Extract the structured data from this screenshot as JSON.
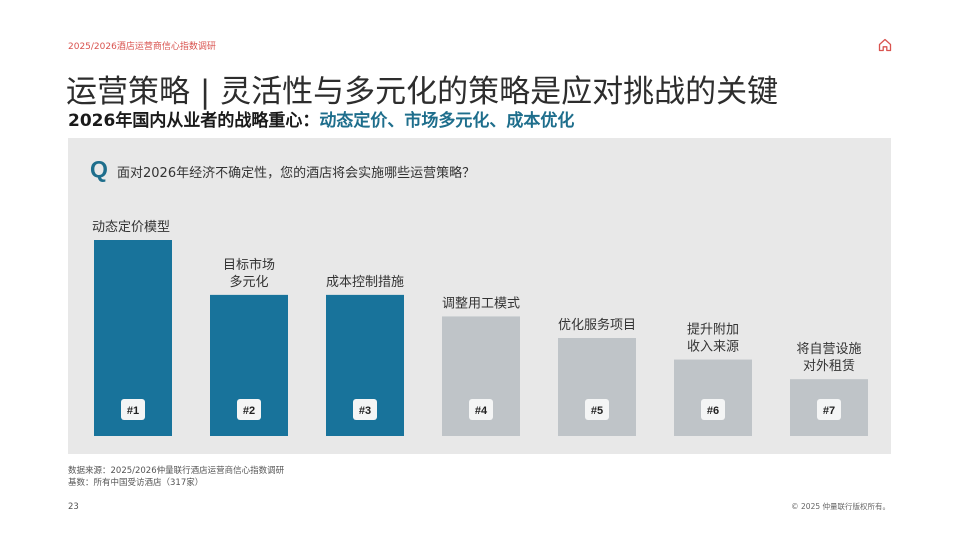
{
  "header": {
    "report_label": "2025/2026酒店运营商信心指数调研",
    "home_icon": "home-icon"
  },
  "title": "运营策略 | 灵活性与多元化的策略是应对挑战的关键",
  "subtitle": {
    "prefix": "2026年国内从业者的战略重心：",
    "highlight": "动态定价、市场多元化、成本优化"
  },
  "question": {
    "mark": "Q",
    "text": "面对2026年经济不确定性，您的酒店将会实施哪些运营策略？"
  },
  "colors": {
    "highlight_bar": "#18739b",
    "other_bar": "#bfc4c8",
    "panel": "#e8e8e8",
    "accent": "#1e6e8c"
  },
  "chart_data": {
    "type": "bar",
    "categories": [
      [
        "动态定价模型"
      ],
      [
        "目标市场",
        "多元化"
      ],
      [
        "成本控制措施"
      ],
      [
        "调整用工模式"
      ],
      [
        "优化服务项目"
      ],
      [
        "提升附加",
        "收入来源"
      ],
      [
        "将自营设施",
        "对外租赁"
      ]
    ],
    "ranks": [
      "#1",
      "#2",
      "#3",
      "#4",
      "#5",
      "#6",
      "#7"
    ],
    "values": [
      100,
      72,
      72,
      61,
      50,
      39,
      29
    ],
    "highlighted": [
      true,
      true,
      true,
      false,
      false,
      false,
      false
    ],
    "grid": false
  },
  "footer": {
    "source": "数据来源：2025/2026仲量联行酒店运营商信心指数调研",
    "base": "基数：所有中国受访酒店（317家）",
    "page_number": "23",
    "copyright": "© 2025 仲量联行版权所有。"
  }
}
